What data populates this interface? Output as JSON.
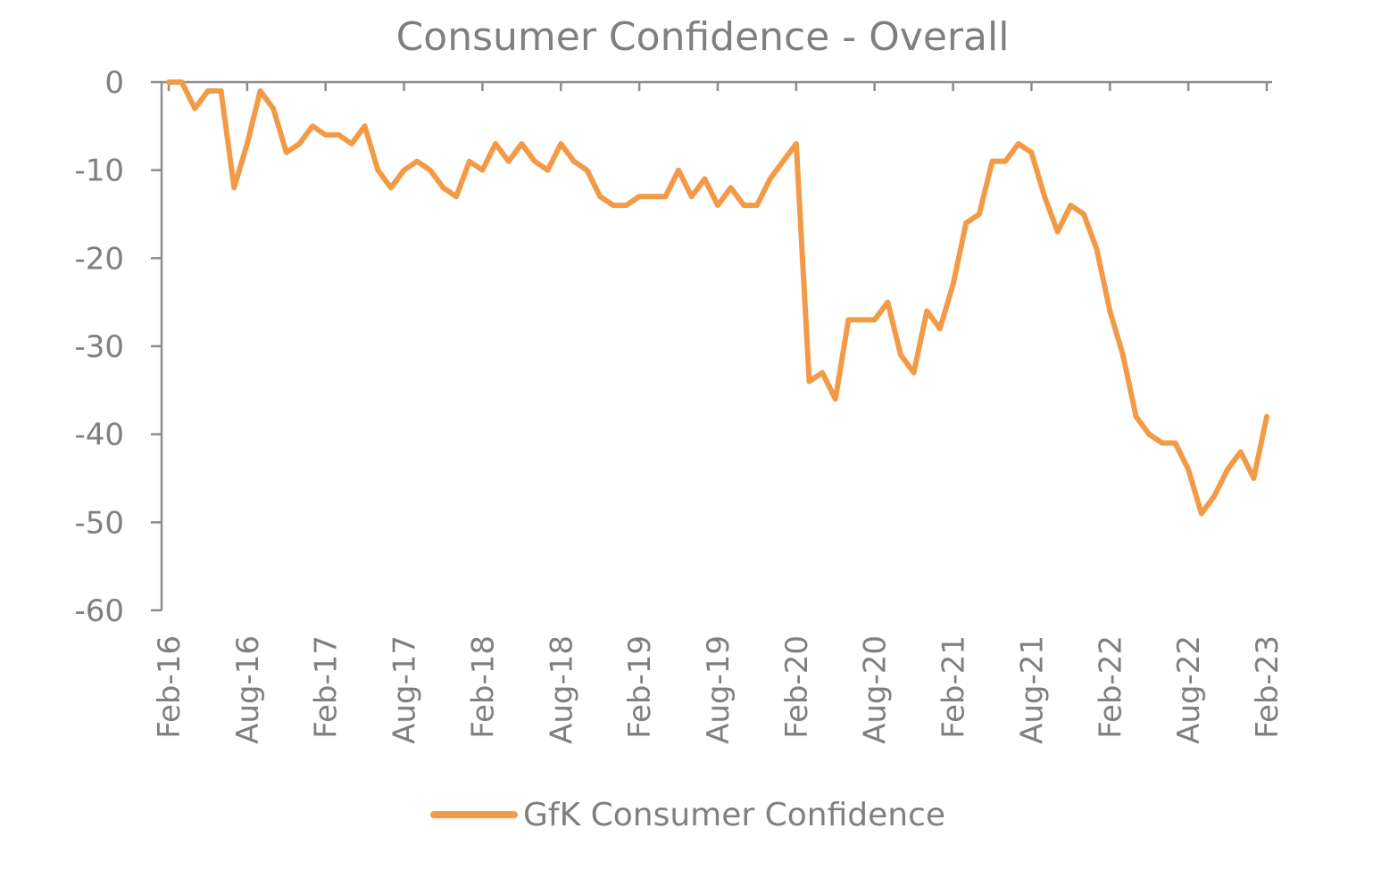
{
  "chart_data": {
    "type": "line",
    "title": "Consumer Confidence - Overall",
    "xlabel": "",
    "ylabel": "",
    "ylim": [
      -60,
      0
    ],
    "yticks": [
      0,
      -10,
      -20,
      -30,
      -40,
      -50,
      -60
    ],
    "xtick_labels": [
      "Feb-16",
      "Aug-16",
      "Feb-17",
      "Aug-17",
      "Feb-18",
      "Aug-18",
      "Feb-19",
      "Aug-19",
      "Feb-20",
      "Aug-20",
      "Feb-21",
      "Aug-21",
      "Feb-22",
      "Aug-22",
      "Feb-23"
    ],
    "grid": false,
    "legend_position": "bottom",
    "colors": {
      "series": "#F39A47",
      "axis": "#8c8c8c",
      "text": "#7f7f7f"
    },
    "series": [
      {
        "name": "GfK Consumer Confidence",
        "x": [
          "Feb-16",
          "Mar-16",
          "Apr-16",
          "May-16",
          "Jun-16",
          "Jul-16",
          "Aug-16",
          "Sep-16",
          "Oct-16",
          "Nov-16",
          "Dec-16",
          "Jan-17",
          "Feb-17",
          "Mar-17",
          "Apr-17",
          "May-17",
          "Jun-17",
          "Jul-17",
          "Aug-17",
          "Sep-17",
          "Oct-17",
          "Nov-17",
          "Dec-17",
          "Jan-18",
          "Feb-18",
          "Mar-18",
          "Apr-18",
          "May-18",
          "Jun-18",
          "Jul-18",
          "Aug-18",
          "Sep-18",
          "Oct-18",
          "Nov-18",
          "Dec-18",
          "Jan-19",
          "Feb-19",
          "Mar-19",
          "Apr-19",
          "May-19",
          "Jun-19",
          "Jul-19",
          "Aug-19",
          "Sep-19",
          "Oct-19",
          "Nov-19",
          "Dec-19",
          "Jan-20",
          "Feb-20",
          "Mar-20",
          "Apr-20",
          "May-20",
          "Jun-20",
          "Jul-20",
          "Aug-20",
          "Sep-20",
          "Oct-20",
          "Nov-20",
          "Dec-20",
          "Jan-21",
          "Feb-21",
          "Mar-21",
          "Apr-21",
          "May-21",
          "Jun-21",
          "Jul-21",
          "Aug-21",
          "Sep-21",
          "Oct-21",
          "Nov-21",
          "Dec-21",
          "Jan-22",
          "Feb-22",
          "Mar-22",
          "Apr-22",
          "May-22",
          "Jun-22",
          "Jul-22",
          "Aug-22",
          "Sep-22",
          "Oct-22",
          "Nov-22",
          "Dec-22",
          "Jan-23",
          "Feb-23"
        ],
        "values": [
          0,
          0,
          -3,
          -1,
          -1,
          -12,
          -7,
          -1,
          -3,
          -8,
          -7,
          -5,
          -6,
          -6,
          -7,
          -5,
          -10,
          -12,
          -10,
          -9,
          -10,
          -12,
          -13,
          -9,
          -10,
          -7,
          -9,
          -7,
          -9,
          -10,
          -7,
          -9,
          -10,
          -13,
          -14,
          -14,
          -13,
          -13,
          -13,
          -10,
          -13,
          -11,
          -14,
          -12,
          -14,
          -14,
          -11,
          -9,
          -7,
          -34,
          -33,
          -36,
          -27,
          -27,
          -27,
          -25,
          -31,
          -33,
          -26,
          -28,
          -23,
          -16,
          -15,
          -9,
          -9,
          -7,
          -8,
          -13,
          -17,
          -14,
          -15,
          -19,
          -26,
          -31,
          -38,
          -40,
          -41,
          -41,
          -44,
          -49,
          -47,
          -44,
          -42,
          -45,
          -38
        ]
      }
    ]
  }
}
